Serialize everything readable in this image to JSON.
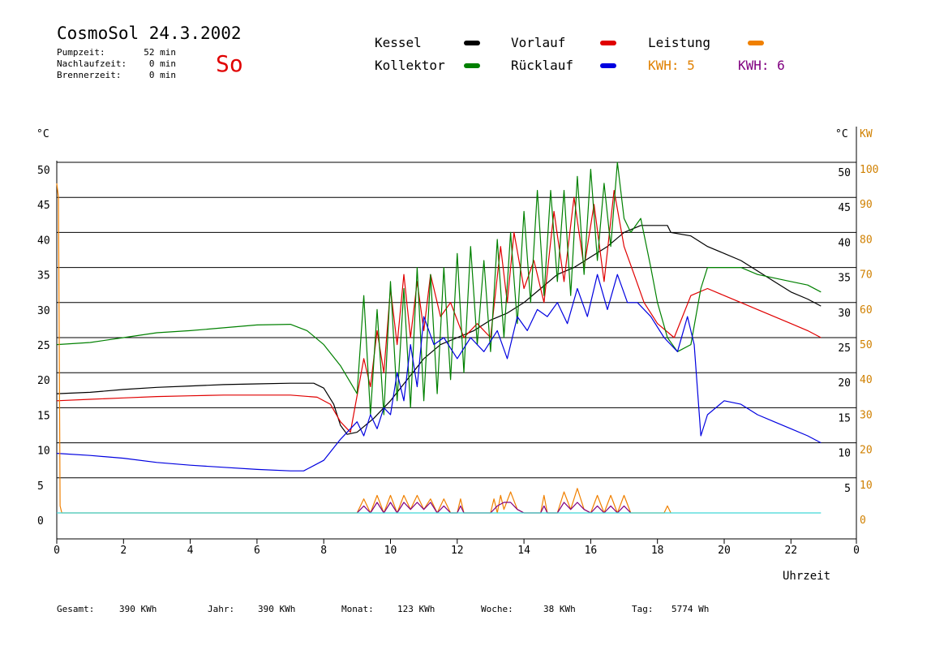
{
  "header": {
    "title": "CosmoSol 24.3.2002",
    "stats": [
      {
        "label": "Pumpzeit:",
        "value": "52 min"
      },
      {
        "label": "Nachlaufzeit:",
        "value": "0 min"
      },
      {
        "label": "Brennerzeit:",
        "value": "0 min"
      }
    ],
    "day": "So"
  },
  "legend": {
    "kessel": {
      "label": "Kessel",
      "color": "#000000"
    },
    "vorlauf": {
      "label": "Vorlauf",
      "color": "#e00000"
    },
    "leistung": {
      "label": "Leistung",
      "color": "#f08000"
    },
    "kollektor": {
      "label": "Kollektor",
      "color": "#008000"
    },
    "ruecklauf": {
      "label": "Rücklauf",
      "color": "#0000e0"
    },
    "kwh5": {
      "label": "KWH: 5",
      "color": "#e08000"
    },
    "kwh6": {
      "label": "KWH: 6",
      "color": "#800080"
    }
  },
  "axis": {
    "left_unit": "°C",
    "right_unit": "°C",
    "right_unit2": "KW",
    "xlabel": "Uhrzeit"
  },
  "footer": [
    {
      "label": "Gesamt:",
      "value": "390 KWh"
    },
    {
      "label": "Jahr:",
      "value": "390 KWh"
    },
    {
      "label": "Monat:",
      "value": "123 KWh"
    },
    {
      "label": "Woche:",
      "value": "38 KWh"
    },
    {
      "label": "Tag:",
      "value": "5774 Wh"
    }
  ],
  "chart_data": {
    "type": "line",
    "xlabel": "Uhrzeit",
    "ylabel": "°C",
    "y2label": "KW",
    "xlim": [
      0,
      23
    ],
    "ylim": [
      0,
      50
    ],
    "y2lim": [
      0,
      100
    ],
    "x_ticks": [
      "0",
      "2",
      "4",
      "6",
      "8",
      "10",
      "12",
      "14",
      "16",
      "18",
      "20",
      "22",
      "0"
    ],
    "y_ticks": [
      "0",
      "5",
      "10",
      "15",
      "20",
      "25",
      "30",
      "35",
      "40",
      "45",
      "50"
    ],
    "y_ticks_right": [
      "5",
      "10",
      "15",
      "20",
      "25",
      "30",
      "35",
      "40",
      "45",
      "50"
    ],
    "y2_ticks": [
      "0",
      "10",
      "20",
      "30",
      "40",
      "50",
      "60",
      "70",
      "80",
      "90",
      "100"
    ],
    "grid": true,
    "series": [
      {
        "name": "Kessel",
        "color": "#000000",
        "x": [
          0,
          1,
          2,
          3,
          4,
          5,
          6,
          7,
          7.7,
          8.0,
          8.3,
          8.5,
          8.7,
          9.0,
          9.5,
          10,
          10.5,
          11,
          11.5,
          12,
          12.5,
          13,
          13.5,
          14,
          14.5,
          15,
          15.5,
          16,
          16.5,
          17,
          17.5,
          18,
          18.3,
          18.4,
          19,
          19.5,
          20,
          20.5,
          21,
          21.5,
          22,
          22.5,
          22.9
        ],
        "y": [
          17,
          17.2,
          17.6,
          17.9,
          18.1,
          18.3,
          18.4,
          18.5,
          18.5,
          17.8,
          15.5,
          12.5,
          11.2,
          11.5,
          13.5,
          16,
          19,
          22,
          24,
          25,
          26,
          27.5,
          28.5,
          30,
          32,
          34,
          35,
          36.5,
          38,
          40,
          41,
          41,
          41,
          40,
          39.5,
          38,
          37,
          36,
          34.5,
          33,
          31.5,
          30.5,
          29.5
        ]
      },
      {
        "name": "Vorlauf",
        "color": "#e00000",
        "x": [
          0,
          1,
          2,
          3,
          4,
          5,
          6,
          7,
          7.8,
          8.2,
          8.5,
          8.8,
          9.2,
          9.4,
          9.6,
          9.8,
          10,
          10.2,
          10.4,
          10.6,
          10.8,
          11.0,
          11.2,
          11.5,
          11.8,
          12.2,
          12.6,
          13.0,
          13.3,
          13.5,
          13.7,
          14.0,
          14.3,
          14.6,
          14.9,
          15.2,
          15.5,
          15.8,
          16.1,
          16.4,
          16.7,
          17.0,
          17.3,
          17.6,
          18.0,
          18.5,
          19.0,
          19.5,
          20,
          20.5,
          21,
          21.5,
          22,
          22.5,
          22.9
        ],
        "y": [
          16,
          16.2,
          16.4,
          16.6,
          16.7,
          16.8,
          16.8,
          16.8,
          16.5,
          15.5,
          13,
          11.5,
          22,
          18,
          26,
          20,
          32,
          24,
          34,
          25,
          33,
          26,
          34,
          28,
          30,
          25,
          27,
          25,
          38,
          30,
          40,
          32,
          36,
          30,
          43,
          33,
          45,
          35,
          44,
          33,
          46,
          38,
          34,
          30,
          27,
          25,
          31,
          32,
          31,
          30,
          29,
          28,
          27,
          26,
          25
        ]
      },
      {
        "name": "Kollektor",
        "color": "#008000",
        "x": [
          0,
          1,
          2,
          3,
          4,
          5,
          6,
          7,
          7.5,
          8,
          8.5,
          9.0,
          9.2,
          9.4,
          9.6,
          9.8,
          10.0,
          10.2,
          10.4,
          10.6,
          10.8,
          11.0,
          11.2,
          11.4,
          11.6,
          11.8,
          12.0,
          12.2,
          12.4,
          12.6,
          12.8,
          13.0,
          13.2,
          13.4,
          13.6,
          13.8,
          14.0,
          14.2,
          14.4,
          14.6,
          14.8,
          15.0,
          15.2,
          15.4,
          15.6,
          15.8,
          16.0,
          16.2,
          16.4,
          16.6,
          16.8,
          17.0,
          17.2,
          17.5,
          17.8,
          18.0,
          18.3,
          18.6,
          19.0,
          19.3,
          19.5,
          20,
          20.5,
          21,
          21.5,
          22,
          22.5,
          22.9
        ],
        "y": [
          24,
          24.3,
          25,
          25.7,
          26,
          26.4,
          26.8,
          26.9,
          26,
          24,
          21,
          17,
          31,
          14,
          29,
          14,
          33,
          16,
          32,
          15,
          35,
          16,
          34,
          17,
          35,
          19,
          37,
          20,
          38,
          24,
          36,
          23,
          39,
          25,
          40,
          27,
          43,
          30,
          46,
          31,
          46,
          33,
          46,
          31,
          48,
          34,
          49,
          36,
          47,
          38,
          50,
          42,
          40,
          42,
          35,
          30,
          25,
          23,
          24,
          32,
          35,
          35,
          35,
          34,
          33.5,
          33,
          32.5,
          31.5
        ]
      },
      {
        "name": "Rücklauf",
        "color": "#0000e0",
        "x": [
          0,
          1,
          2,
          3,
          4,
          5,
          6,
          7,
          7.4,
          8,
          8.5,
          9.0,
          9.2,
          9.4,
          9.6,
          9.8,
          10.0,
          10.2,
          10.4,
          10.6,
          10.8,
          11.0,
          11.3,
          11.6,
          12.0,
          12.4,
          12.8,
          13.2,
          13.5,
          13.8,
          14.1,
          14.4,
          14.7,
          15.0,
          15.3,
          15.6,
          15.9,
          16.2,
          16.5,
          16.8,
          17.1,
          17.4,
          17.8,
          18.2,
          18.6,
          18.9,
          19.1,
          19.3,
          19.5,
          20,
          20.5,
          21,
          21.5,
          22,
          22.5,
          22.9
        ],
        "y": [
          8.5,
          8.2,
          7.8,
          7.2,
          6.8,
          6.5,
          6.2,
          6.0,
          6.0,
          7.5,
          10.5,
          13,
          11,
          14,
          12,
          15,
          14,
          20,
          16,
          24,
          18,
          28,
          24,
          25,
          22,
          25,
          23,
          26,
          22,
          28,
          26,
          29,
          28,
          30,
          27,
          32,
          28,
          34,
          29,
          34,
          30,
          30,
          28,
          25,
          23,
          28,
          24,
          11,
          14,
          16,
          15.5,
          14,
          13,
          12,
          11,
          10
        ]
      },
      {
        "name": "Leistung",
        "color": "#f08000",
        "axis": "y2",
        "x": [
          0,
          0.05,
          0.1,
          0.15,
          9.0,
          9.2,
          9.4,
          9.6,
          9.8,
          10.0,
          10.2,
          10.4,
          10.6,
          10.8,
          11.0,
          11.2,
          11.4,
          11.6,
          11.8,
          12.0,
          12.1,
          12.2,
          12.4,
          13.0,
          13.1,
          13.2,
          13.3,
          13.4,
          13.6,
          13.8,
          14.0,
          14.5,
          14.6,
          14.7,
          15.0,
          15.2,
          15.4,
          15.6,
          15.8,
          16.0,
          16.2,
          16.4,
          16.6,
          16.8,
          17.0,
          17.2,
          17.4,
          17.6,
          18.2,
          18.3,
          18.4
        ],
        "y": [
          94,
          90,
          2,
          0,
          0,
          4,
          0,
          5,
          0,
          5,
          0,
          5,
          1,
          5,
          1,
          4,
          0,
          4,
          0,
          0,
          4,
          0,
          0,
          0,
          4,
          0,
          5,
          1,
          6,
          1,
          0,
          0,
          5,
          0,
          0,
          6,
          1,
          7,
          1,
          0,
          5,
          0,
          5,
          0,
          5,
          0,
          0,
          0,
          0,
          2,
          0
        ]
      },
      {
        "name": "KWH: 6",
        "color": "#800080",
        "axis": "y2",
        "x": [
          9.0,
          9.2,
          9.4,
          9.6,
          9.8,
          10.0,
          10.2,
          10.4,
          10.6,
          10.8,
          11.0,
          11.2,
          11.4,
          11.6,
          11.8,
          12.0,
          12.1,
          12.2,
          12.4,
          13.0,
          13.2,
          13.4,
          13.6,
          13.8,
          14.0,
          14.5,
          14.6,
          14.7,
          15.0,
          15.2,
          15.4,
          15.6,
          15.8,
          16.0,
          16.2,
          16.4,
          16.6,
          16.8,
          17.0,
          17.2
        ],
        "y": [
          0,
          2,
          0,
          3,
          0,
          3,
          0,
          3,
          1,
          3,
          1,
          3,
          0,
          2,
          0,
          0,
          2,
          0,
          0,
          0,
          2,
          3,
          3,
          1,
          0,
          0,
          2,
          0,
          0,
          3,
          1,
          3,
          1,
          0,
          2,
          0,
          2,
          0,
          2,
          0
        ]
      },
      {
        "name": "baseline",
        "color": "#40d8d8",
        "x": [
          0,
          22.9
        ],
        "y": [
          0,
          0
        ]
      }
    ]
  }
}
